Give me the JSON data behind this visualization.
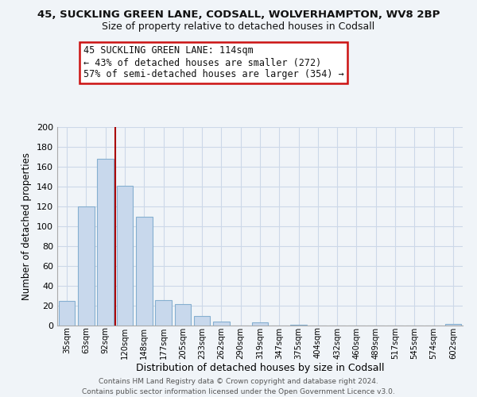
{
  "title": "45, SUCKLING GREEN LANE, CODSALL, WOLVERHAMPTON, WV8 2BP",
  "subtitle": "Size of property relative to detached houses in Codsall",
  "xlabel": "Distribution of detached houses by size in Codsall",
  "ylabel": "Number of detached properties",
  "bar_labels": [
    "35sqm",
    "63sqm",
    "92sqm",
    "120sqm",
    "148sqm",
    "177sqm",
    "205sqm",
    "233sqm",
    "262sqm",
    "290sqm",
    "319sqm",
    "347sqm",
    "375sqm",
    "404sqm",
    "432sqm",
    "460sqm",
    "489sqm",
    "517sqm",
    "545sqm",
    "574sqm",
    "602sqm"
  ],
  "bar_values": [
    25,
    120,
    168,
    141,
    110,
    26,
    22,
    10,
    4,
    0,
    3,
    0,
    1,
    0,
    0,
    0,
    0,
    0,
    0,
    0,
    2
  ],
  "bar_color": "#c8d8ec",
  "bar_edge_color": "#85afd0",
  "vline_color": "#aa0000",
  "ylim": [
    0,
    200
  ],
  "yticks": [
    0,
    20,
    40,
    60,
    80,
    100,
    120,
    140,
    160,
    180,
    200
  ],
  "annotation_line1": "45 SUCKLING GREEN LANE: 114sqm",
  "annotation_line2": "← 43% of detached houses are smaller (272)",
  "annotation_line3": "57% of semi-detached houses are larger (354) →",
  "footer_line1": "Contains HM Land Registry data © Crown copyright and database right 2024.",
  "footer_line2": "Contains public sector information licensed under the Open Government Licence v3.0.",
  "background_color": "#f0f4f8",
  "grid_color": "#ccd8e8",
  "vline_bar_index": 2
}
